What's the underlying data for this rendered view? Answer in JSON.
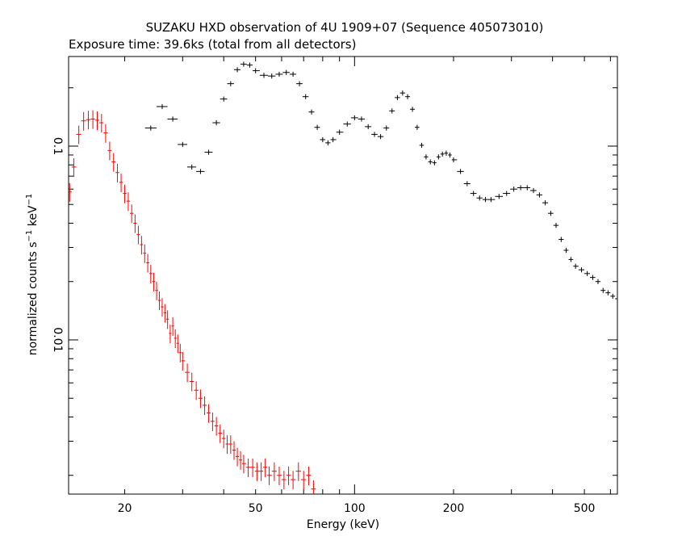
{
  "chart_data": {
    "type": "scatter",
    "title": "SUZAKU HXD observation of 4U 1909+07 (Sequence 405073010)",
    "subtitle": "Exposure time: 39.6ks (total from all detectors)",
    "xlabel": "Energy (keV)",
    "ylabel_parts": [
      "normalized counts s",
      "−1",
      " keV",
      "−1"
    ],
    "xscale": "log",
    "yscale": "log",
    "xlim": [
      13.5,
      630
    ],
    "ylim": [
      0.0016,
      0.29
    ],
    "x_ticks": [
      {
        "value": 20,
        "label": "20"
      },
      {
        "value": 50,
        "label": "50"
      },
      {
        "value": 100,
        "label": "100"
      },
      {
        "value": 200,
        "label": "200"
      },
      {
        "value": 500,
        "label": "500"
      }
    ],
    "y_ticks": [
      {
        "value": 0.01,
        "label": "0.01"
      },
      {
        "value": 0.1,
        "label": "0.1"
      }
    ],
    "series": [
      {
        "color": "#ff0000",
        "x": [
          13.6,
          14.0,
          14.5,
          15.0,
          15.5,
          16.0,
          16.5,
          17.0,
          17.5,
          18.0,
          18.5,
          19.0,
          19.5,
          20.0,
          20.5,
          21.0,
          21.5,
          22.0,
          22.5,
          23.0,
          23.5,
          24.0,
          24.5,
          25.0,
          25.5,
          26.0,
          26.5,
          27.0,
          27.5,
          28.0,
          28.5,
          29.0,
          29.5,
          30.0,
          31.0,
          32.0,
          33.0,
          34.0,
          35.0,
          36.0,
          37.0,
          38.0,
          39.0,
          40.0,
          41.0,
          42.0,
          43.0,
          44.0,
          45.0,
          46.0,
          47.5,
          49.0,
          50.5,
          52.0,
          53.5,
          55.0,
          57.0,
          59.0,
          61.0,
          63.0,
          65.0,
          67.5,
          70.0,
          72.5,
          75.0
        ],
        "y": [
          0.058,
          0.078,
          0.115,
          0.135,
          0.137,
          0.138,
          0.136,
          0.132,
          0.117,
          0.095,
          0.083,
          0.073,
          0.065,
          0.057,
          0.052,
          0.045,
          0.04,
          0.035,
          0.031,
          0.028,
          0.025,
          0.022,
          0.02,
          0.018,
          0.016,
          0.0148,
          0.0138,
          0.0128,
          0.0108,
          0.0118,
          0.0102,
          0.0096,
          0.0086,
          0.0078,
          0.0068,
          0.0061,
          0.0055,
          0.005,
          0.0046,
          0.0042,
          0.0038,
          0.0036,
          0.0033,
          0.0031,
          0.0029,
          0.0029,
          0.0027,
          0.0025,
          0.0024,
          0.0023,
          0.0022,
          0.0022,
          0.0021,
          0.0021,
          0.0022,
          0.002,
          0.0021,
          0.002,
          0.0019,
          0.002,
          0.0019,
          0.0021,
          0.0019,
          0.002,
          0.0017
        ],
        "err_frac": 0.11
      },
      {
        "color": "#000000",
        "x": [
          24,
          26,
          28,
          30,
          32,
          34,
          36,
          38,
          40,
          42,
          44,
          46,
          48,
          50,
          53,
          56,
          59,
          62,
          65,
          68,
          71,
          74,
          77,
          80,
          83,
          86,
          90,
          95,
          100,
          105,
          110,
          115,
          120,
          125,
          130,
          135,
          140,
          145,
          150,
          155,
          160,
          165,
          170,
          175,
          180,
          185,
          190,
          195,
          200,
          210,
          220,
          230,
          240,
          250,
          260,
          275,
          290,
          305,
          320,
          335,
          350,
          365,
          380,
          395,
          410,
          425,
          440,
          455,
          470,
          490,
          510,
          530,
          550,
          570,
          590,
          610,
          630
        ],
        "y": [
          0.124,
          0.16,
          0.138,
          0.102,
          0.078,
          0.074,
          0.093,
          0.132,
          0.175,
          0.21,
          0.248,
          0.265,
          0.262,
          0.245,
          0.232,
          0.23,
          0.235,
          0.24,
          0.235,
          0.21,
          0.18,
          0.15,
          0.125,
          0.108,
          0.104,
          0.108,
          0.118,
          0.13,
          0.14,
          0.138,
          0.126,
          0.115,
          0.112,
          0.124,
          0.152,
          0.178,
          0.188,
          0.18,
          0.155,
          0.125,
          0.101,
          0.088,
          0.083,
          0.082,
          0.088,
          0.091,
          0.092,
          0.09,
          0.085,
          0.074,
          0.064,
          0.057,
          0.054,
          0.053,
          0.053,
          0.055,
          0.057,
          0.06,
          0.061,
          0.061,
          0.059,
          0.056,
          0.051,
          0.045,
          0.039,
          0.033,
          0.029,
          0.026,
          0.024,
          0.023,
          0.022,
          0.021,
          0.02,
          0.018,
          0.0175,
          0.0168,
          0.0163
        ],
        "err_frac": 0.03
      }
    ]
  }
}
